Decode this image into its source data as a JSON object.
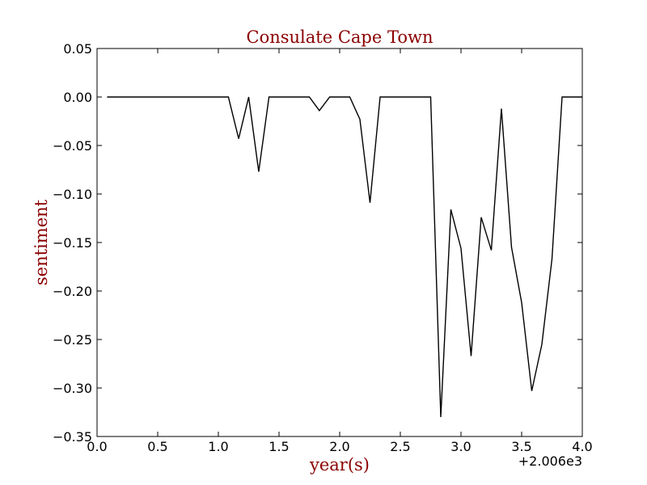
{
  "chart_data": {
    "type": "line",
    "title": "Consulate Cape Town",
    "xlabel": "year(s)",
    "ylabel": "sentiment",
    "x_offset_label": "+2.006e3",
    "xlim": [
      0.0,
      4.0
    ],
    "ylim": [
      -0.35,
      0.05
    ],
    "x_ticks": [
      0.0,
      0.5,
      1.0,
      1.5,
      2.0,
      2.5,
      3.0,
      3.5,
      4.0
    ],
    "x_tick_labels": [
      "0.0",
      "0.5",
      "1.0",
      "1.5",
      "2.0",
      "2.5",
      "3.0",
      "3.5",
      "4.0"
    ],
    "y_ticks": [
      0.05,
      0.0,
      -0.05,
      -0.1,
      -0.15,
      -0.2,
      -0.25,
      -0.3,
      -0.35
    ],
    "y_tick_labels": [
      "0.05",
      "0.00",
      "−0.05",
      "−0.10",
      "−0.15",
      "−0.20",
      "−0.25",
      "−0.30",
      "−0.35"
    ],
    "grid": false,
    "colors": {
      "line": "#000000",
      "title": "#8b0000",
      "axis_label": "#8b0000",
      "frame": "#000000"
    },
    "series": [
      {
        "x": [
          0.083,
          0.167,
          0.25,
          0.333,
          0.417,
          0.5,
          0.583,
          0.667,
          0.75,
          0.833,
          0.917,
          1.0,
          1.083,
          1.167,
          1.25,
          1.333,
          1.417,
          1.5,
          1.583,
          1.667,
          1.75,
          1.833,
          1.917,
          2.0,
          2.083,
          2.167,
          2.25,
          2.333,
          2.417,
          2.5,
          2.583,
          2.667,
          2.75,
          2.833,
          2.917,
          3.0,
          3.083,
          3.167,
          3.25,
          3.333,
          3.417,
          3.5,
          3.583,
          3.667,
          3.75,
          3.833,
          3.917,
          4.0
        ],
        "y": [
          0.0,
          0.0,
          0.0,
          0.0,
          0.0,
          0.0,
          0.0,
          0.0,
          0.0,
          0.0,
          0.0,
          0.0,
          0.0,
          -0.043,
          0.0,
          -0.077,
          0.0,
          0.0,
          0.0,
          0.0,
          0.0,
          -0.014,
          0.0,
          0.0,
          0.0,
          -0.023,
          -0.109,
          0.0,
          0.0,
          0.0,
          0.0,
          0.0,
          0.0,
          -0.33,
          -0.116,
          -0.156,
          -0.267,
          -0.124,
          -0.158,
          -0.012,
          -0.155,
          -0.212,
          -0.303,
          -0.255,
          -0.167,
          0.0,
          0.0,
          0.0
        ]
      }
    ]
  }
}
